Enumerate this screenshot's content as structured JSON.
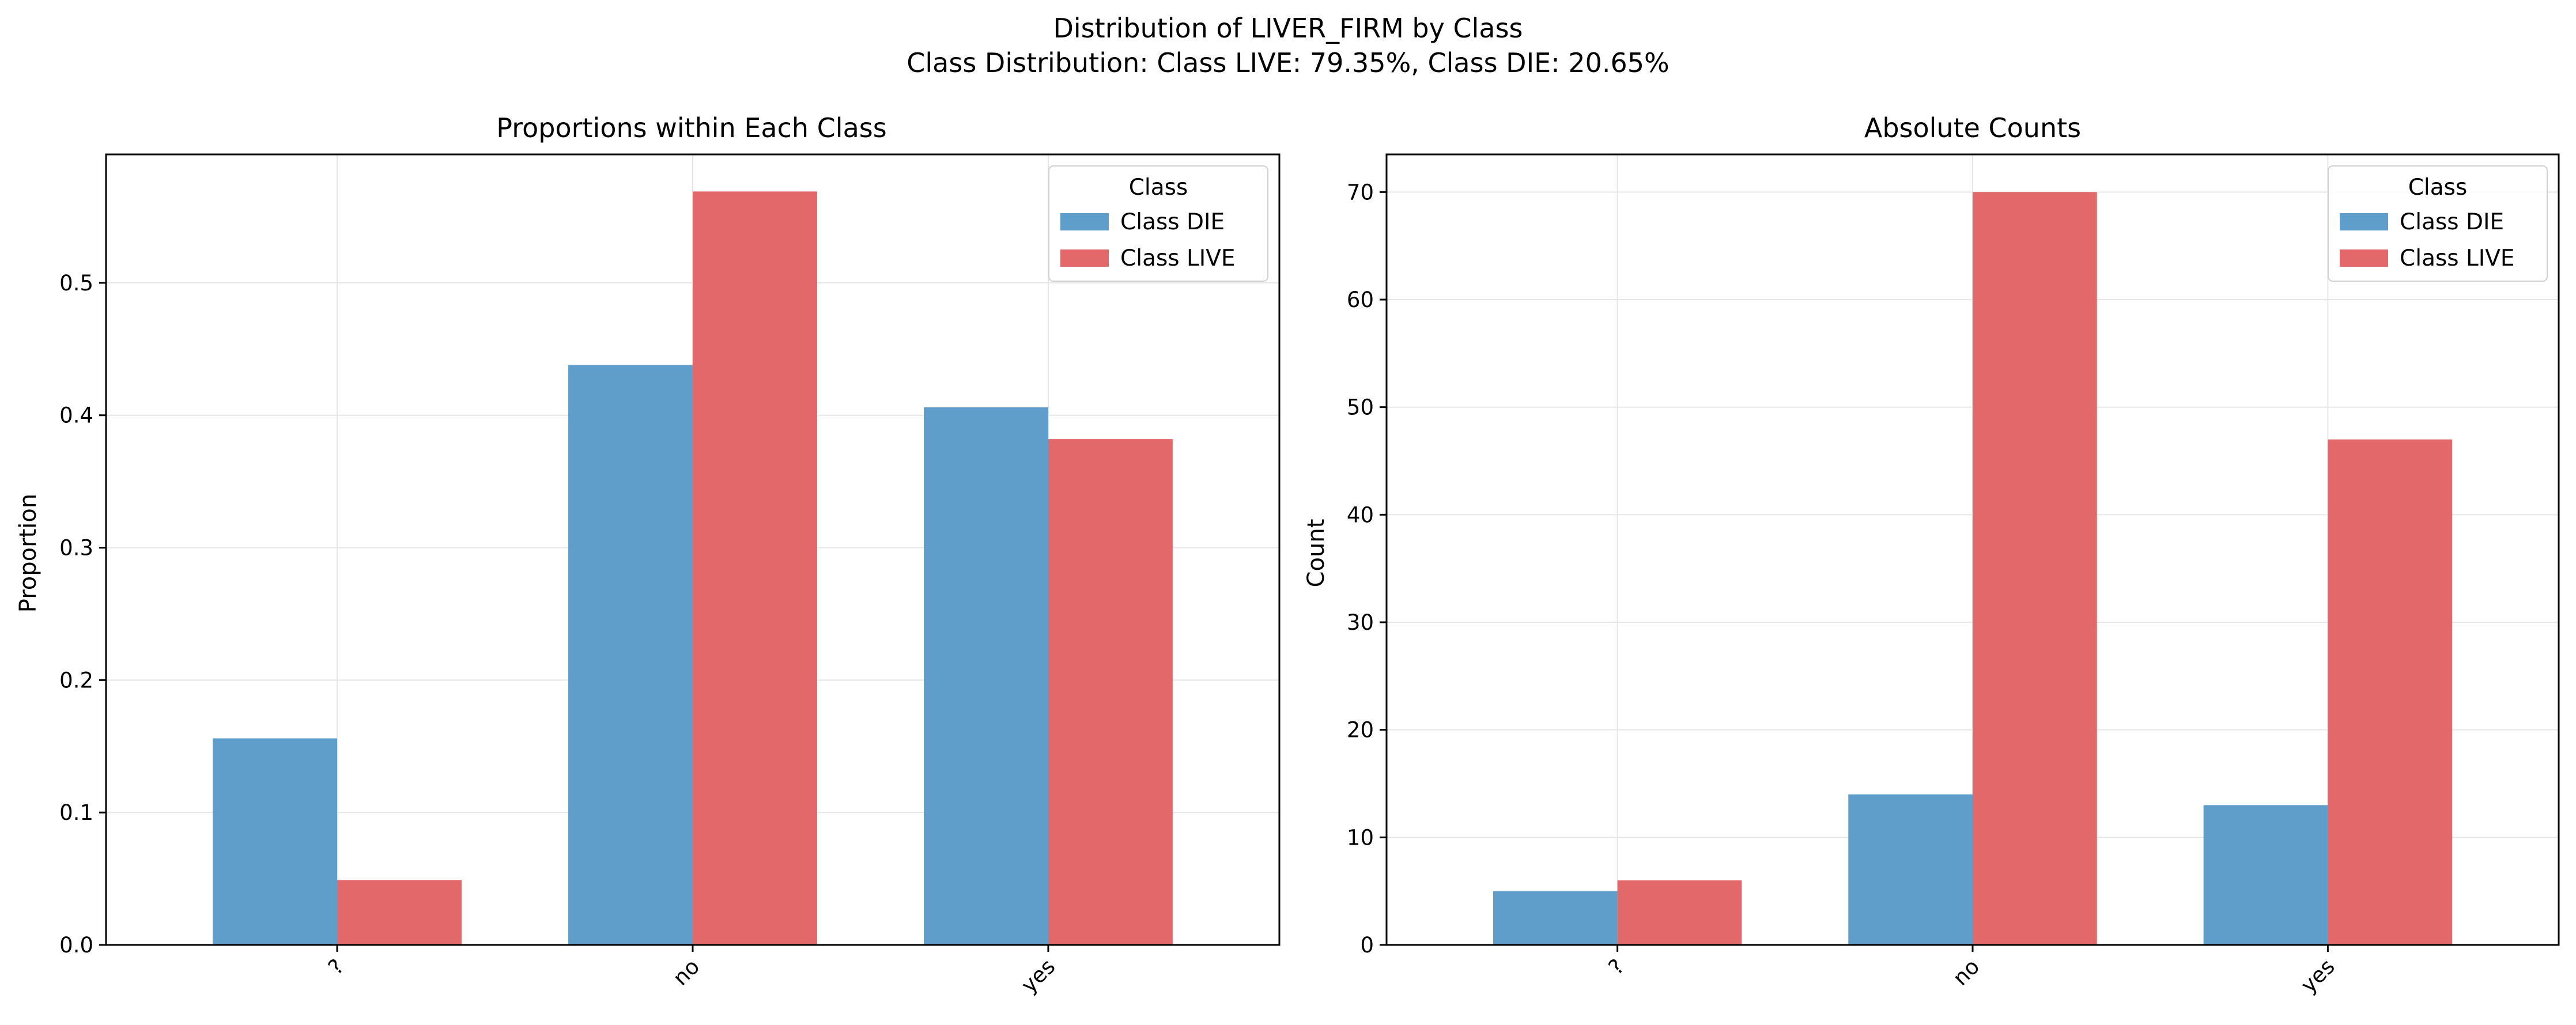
{
  "figure": {
    "title": "Distribution of LIVER_FIRM by Class",
    "subtitle": "Class Distribution: Class LIVE: 79.35%, Class DIE: 20.65%"
  },
  "colors": {
    "die": "#5f9ecb",
    "live": "#e2686a",
    "grid": "#e6e6e6"
  },
  "chart_data": [
    {
      "type": "bar",
      "title": "Proportions within Each Class",
      "xlabel": "",
      "ylabel": "Proportion",
      "categories": [
        "?",
        "no",
        "yes"
      ],
      "series": [
        {
          "name": "Class DIE",
          "values": [
            0.156,
            0.438,
            0.406
          ]
        },
        {
          "name": "Class LIVE",
          "values": [
            0.049,
            0.569,
            0.382
          ]
        }
      ],
      "ylim": [
        0,
        0.597
      ],
      "yticks": [
        0.0,
        0.1,
        0.2,
        0.3,
        0.4,
        0.5
      ],
      "ytick_labels": [
        "0.0",
        "0.1",
        "0.2",
        "0.3",
        "0.4",
        "0.5"
      ],
      "legend": {
        "title": "Class",
        "placement": "top-right"
      },
      "grid": true
    },
    {
      "type": "bar",
      "title": "Absolute Counts",
      "xlabel": "",
      "ylabel": "Count",
      "categories": [
        "?",
        "no",
        "yes"
      ],
      "series": [
        {
          "name": "Class DIE",
          "values": [
            5,
            14,
            13
          ]
        },
        {
          "name": "Class LIVE",
          "values": [
            6,
            70,
            47
          ]
        }
      ],
      "ylim": [
        0,
        73.5
      ],
      "yticks": [
        0,
        10,
        20,
        30,
        40,
        50,
        60,
        70
      ],
      "ytick_labels": [
        "0",
        "10",
        "20",
        "30",
        "40",
        "50",
        "60",
        "70"
      ],
      "legend": {
        "title": "Class",
        "placement": "top-right"
      },
      "grid": true
    }
  ]
}
